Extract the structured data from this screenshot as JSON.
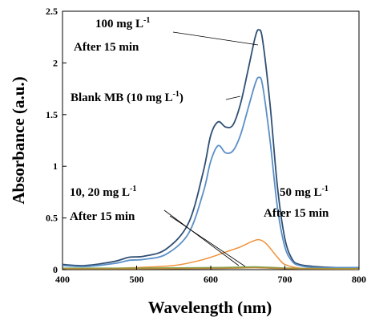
{
  "chart_data": {
    "type": "line",
    "xlabel": "Wavelength (nm)",
    "ylabel": "Absorbance (a.u.)",
    "xlim": [
      400,
      800
    ],
    "ylim": [
      0,
      2.5
    ],
    "xticks": [
      "400",
      "500",
      "600",
      "700",
      "800"
    ],
    "yticks": [
      "0",
      "0.5",
      "1",
      "1.5",
      "2",
      "2.5"
    ],
    "grid": false,
    "series": [
      {
        "color": "#2f4f73",
        "x": [
          400,
          430,
          470,
          490,
          510,
          540,
          570,
          590,
          600,
          610,
          620,
          630,
          640,
          650,
          660,
          665,
          670,
          680,
          690,
          700,
          710,
          720,
          740,
          770,
          800
        ],
        "y": [
          0.05,
          0.04,
          0.08,
          0.12,
          0.13,
          0.2,
          0.45,
          0.95,
          1.3,
          1.43,
          1.38,
          1.4,
          1.6,
          1.92,
          2.25,
          2.32,
          2.22,
          1.6,
          0.8,
          0.3,
          0.1,
          0.05,
          0.03,
          0.02,
          0.02
        ]
      },
      {
        "color": "#5b8fc7",
        "x": [
          400,
          430,
          470,
          490,
          510,
          540,
          570,
          590,
          600,
          610,
          620,
          630,
          640,
          650,
          660,
          665,
          670,
          680,
          690,
          700,
          710,
          720,
          740,
          770,
          800
        ],
        "y": [
          0.04,
          0.03,
          0.06,
          0.09,
          0.1,
          0.15,
          0.35,
          0.75,
          1.05,
          1.2,
          1.13,
          1.15,
          1.3,
          1.55,
          1.8,
          1.86,
          1.78,
          1.25,
          0.6,
          0.22,
          0.08,
          0.04,
          0.02,
          0.02,
          0.02
        ]
      },
      {
        "color": "#f0913a",
        "x": [
          400,
          450,
          500,
          550,
          580,
          600,
          620,
          640,
          655,
          665,
          675,
          690,
          700,
          720,
          750,
          800
        ],
        "y": [
          0.01,
          0.01,
          0.02,
          0.04,
          0.08,
          0.12,
          0.17,
          0.22,
          0.27,
          0.29,
          0.25,
          0.12,
          0.05,
          0.015,
          0.01,
          0.01
        ]
      },
      {
        "color": "#7fa34a",
        "x": [
          400,
          500,
          600,
          640,
          660,
          680,
          720,
          800
        ],
        "y": [
          0.015,
          0.015,
          0.02,
          0.025,
          0.027,
          0.022,
          0.012,
          0.01
        ]
      },
      {
        "color": "#b8893a",
        "x": [
          400,
          500,
          600,
          640,
          660,
          680,
          720,
          800
        ],
        "y": [
          0.008,
          0.008,
          0.012,
          0.016,
          0.018,
          0.014,
          0.008,
          0.006
        ]
      }
    ],
    "annotations": {
      "a100_line1": "100 mg L",
      "a100_sup": "-1",
      "a100_line2": "After 15 min",
      "blank_text": "Blank MB (10 mg L",
      "blank_sup": "-1",
      "blank_close": ")",
      "a1020_line1": "10, 20 mg L",
      "a1020_sup": "-1",
      "a1020_line2": "After 15 min",
      "a50_line1": "50 mg L",
      "a50_sup": "-1",
      "a50_line2": "After 15 min"
    }
  }
}
